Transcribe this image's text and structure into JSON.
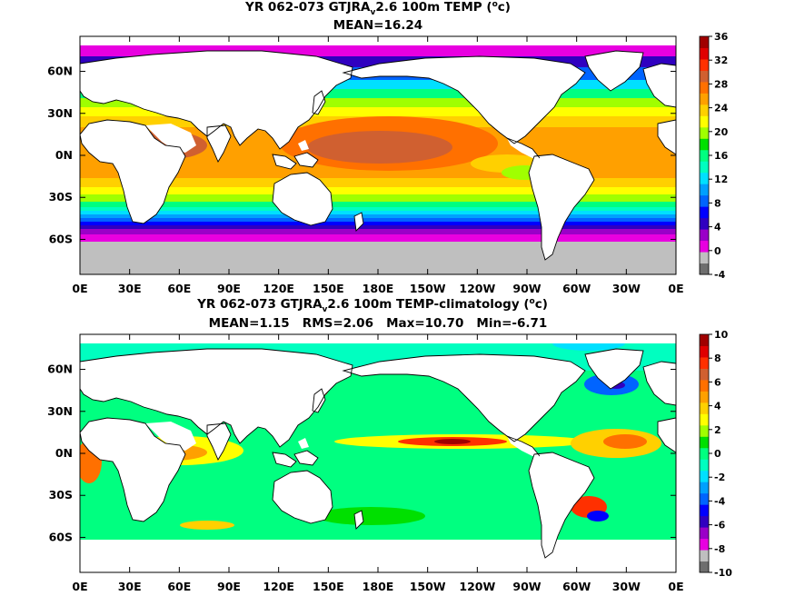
{
  "chart_data": [
    {
      "type": "heatmap",
      "title_main": "YR 062-073 GTJRA",
      "title_sub": "v",
      "title_rest": "2.6 100m TEMP (",
      "title_sup": "o",
      "title_end": "c)",
      "subtitle": "MEAN=16.24",
      "x_ticks": [
        "0E",
        "30E",
        "60E",
        "90E",
        "120E",
        "150E",
        "180E",
        "150W",
        "120W",
        "90W",
        "60W",
        "30W",
        "0E"
      ],
      "y_ticks": [
        "60N",
        "30N",
        "0N",
        "30S",
        "60S"
      ],
      "y_tick_lat": [
        60,
        30,
        0,
        -30,
        -60
      ],
      "lat_range": [
        -85,
        85
      ],
      "colorbar": {
        "ticks": [
          "36",
          "32",
          "28",
          "24",
          "20",
          "16",
          "12",
          "8",
          "4",
          "0",
          "-4"
        ],
        "colors": [
          "#6e6e6e",
          "#bfbfbf",
          "#e800e0",
          "#9a00c8",
          "#3000c0",
          "#0000ff",
          "#0064ff",
          "#00a0ff",
          "#00e0ff",
          "#00ffc0",
          "#00ff80",
          "#00e000",
          "#a0ff00",
          "#ffff00",
          "#ffd000",
          "#ffa000",
          "#ff7000",
          "#d06030",
          "#ff3000",
          "#e00000",
          "#a00000"
        ]
      },
      "field_description_values": {
        "mean": 16.24
      }
    },
    {
      "type": "heatmap",
      "title_main": "YR 062-073 GTJRA",
      "title_sub": "v",
      "title_rest": "2.6 100m TEMP-climatology (",
      "title_sup": "o",
      "title_end": "c)",
      "subtitle": "MEAN=1.15   RMS=2.06   Max=10.70   Min=-6.71",
      "x_ticks": [
        "0E",
        "30E",
        "60E",
        "90E",
        "120E",
        "150E",
        "180E",
        "150W",
        "120W",
        "90W",
        "60W",
        "30W",
        "0E"
      ],
      "y_ticks": [
        "60N",
        "30N",
        "0N",
        "30S",
        "60S"
      ],
      "y_tick_lat": [
        60,
        30,
        0,
        -30,
        -60
      ],
      "lat_range": [
        -85,
        85
      ],
      "colorbar": {
        "ticks": [
          "10",
          "8",
          "6",
          "4",
          "2",
          "0",
          "-2",
          "-4",
          "-6",
          "-8",
          "-10"
        ],
        "colors": [
          "#6e6e6e",
          "#bfbfbf",
          "#e800e0",
          "#9a00c8",
          "#3000c0",
          "#0000ff",
          "#0064ff",
          "#00a0ff",
          "#00e0ff",
          "#00ffc0",
          "#00ff80",
          "#00e000",
          "#a0ff00",
          "#ffff00",
          "#ffd000",
          "#ffa000",
          "#ff7000",
          "#d06030",
          "#ff3000",
          "#e00000",
          "#a00000"
        ]
      },
      "field_description_values": {
        "mean": 1.15,
        "rms": 2.06,
        "max": 10.7,
        "min": -6.71
      }
    }
  ]
}
